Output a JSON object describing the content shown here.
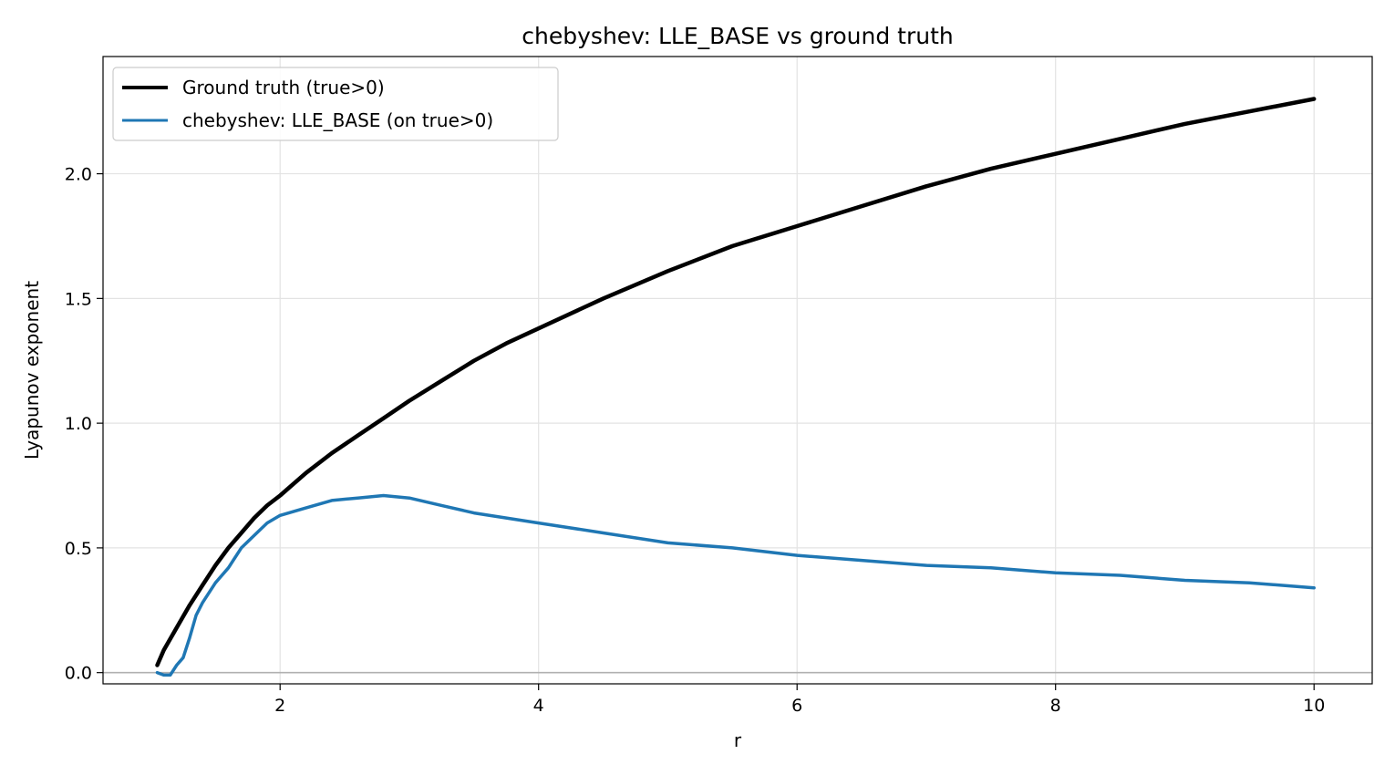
{
  "chart_data": {
    "type": "line",
    "title": "chebyshev: LLE_BASE vs ground truth",
    "xlabel": "r",
    "ylabel": "Lyapunov exponent",
    "xlim": [
      0.63,
      10.45
    ],
    "ylim": [
      -0.045,
      2.47
    ],
    "xticks": [
      2,
      4,
      6,
      8,
      10
    ],
    "xtick_labels": [
      "2",
      "4",
      "6",
      "8",
      "10"
    ],
    "yticks": [
      0.0,
      0.5,
      1.0,
      1.5,
      2.0
    ],
    "ytick_labels": [
      "0.0",
      "0.5",
      "1.0",
      "1.5",
      "2.0"
    ],
    "grid": true,
    "reference_line_y": 0.0,
    "legend_position": "upper-left",
    "series": [
      {
        "name": "Ground truth (true>0)",
        "color": "#000000",
        "x": [
          1.05,
          1.1,
          1.2,
          1.3,
          1.4,
          1.5,
          1.6,
          1.7,
          1.8,
          1.9,
          2.0,
          2.2,
          2.4,
          2.6,
          2.8,
          3.0,
          3.25,
          3.5,
          3.75,
          4.0,
          4.5,
          5.0,
          5.5,
          6.0,
          6.5,
          7.0,
          7.5,
          8.0,
          8.5,
          9.0,
          9.5,
          10.0
        ],
        "y": [
          0.03,
          0.09,
          0.18,
          0.27,
          0.35,
          0.43,
          0.5,
          0.56,
          0.62,
          0.67,
          0.71,
          0.8,
          0.88,
          0.95,
          1.02,
          1.09,
          1.17,
          1.25,
          1.32,
          1.38,
          1.5,
          1.61,
          1.71,
          1.79,
          1.87,
          1.95,
          2.02,
          2.08,
          2.14,
          2.2,
          2.25,
          2.3
        ]
      },
      {
        "name": "chebyshev: LLE_BASE (on true>0)",
        "color": "#1f77b4",
        "x": [
          1.05,
          1.1,
          1.15,
          1.2,
          1.25,
          1.3,
          1.35,
          1.4,
          1.5,
          1.6,
          1.7,
          1.8,
          1.9,
          2.0,
          2.2,
          2.4,
          2.6,
          2.8,
          3.0,
          3.25,
          3.5,
          3.75,
          4.0,
          4.5,
          5.0,
          5.5,
          6.0,
          6.5,
          7.0,
          7.5,
          8.0,
          8.5,
          9.0,
          9.5,
          10.0
        ],
        "y": [
          0.0,
          -0.01,
          -0.01,
          0.03,
          0.06,
          0.14,
          0.23,
          0.28,
          0.36,
          0.42,
          0.5,
          0.55,
          0.6,
          0.63,
          0.66,
          0.69,
          0.7,
          0.71,
          0.7,
          0.67,
          0.64,
          0.62,
          0.6,
          0.56,
          0.52,
          0.5,
          0.47,
          0.45,
          0.43,
          0.42,
          0.4,
          0.39,
          0.37,
          0.36,
          0.34
        ]
      }
    ]
  }
}
